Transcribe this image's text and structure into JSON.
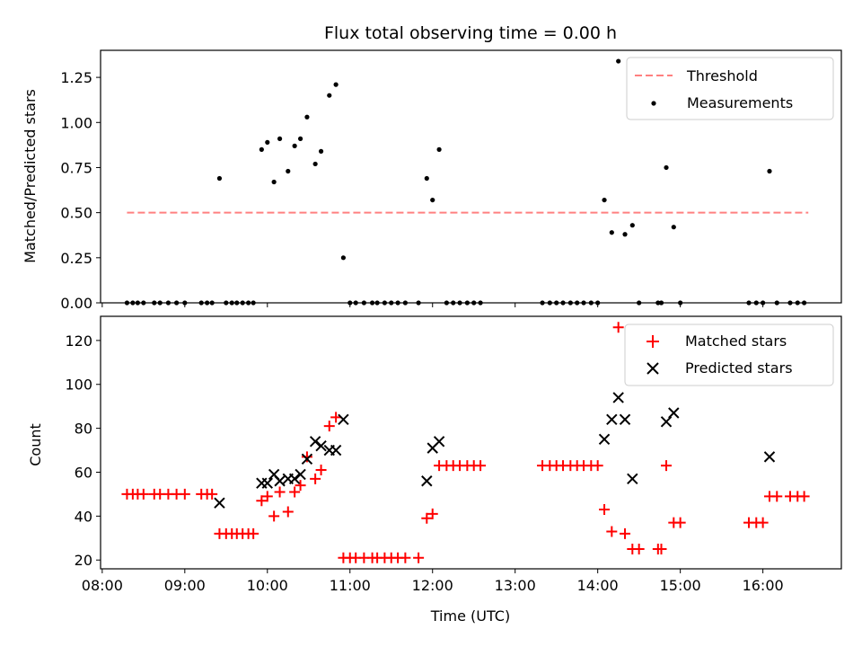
{
  "chart_data": {
    "type": "scatter",
    "title": "Flux total observing time = 0.00 h",
    "xlabel": "Time (UTC)",
    "x_unit": "hours since 00:00 UTC",
    "x_range": [
      7.98,
      16.95
    ],
    "x_ticks": [
      {
        "value": 8,
        "label": "08:00"
      },
      {
        "value": 9,
        "label": "09:00"
      },
      {
        "value": 10,
        "label": "10:00"
      },
      {
        "value": 11,
        "label": "11:00"
      },
      {
        "value": 12,
        "label": "12:00"
      },
      {
        "value": 13,
        "label": "13:00"
      },
      {
        "value": 14,
        "label": "14:00"
      },
      {
        "value": 15,
        "label": "15:00"
      },
      {
        "value": 16,
        "label": "16:00"
      }
    ],
    "panels": [
      {
        "id": "ratio",
        "ylabel": "Matched/Predicted stars",
        "ylim": [
          0,
          1.4
        ],
        "y_ticks": [
          "0.00",
          "0.25",
          "0.50",
          "0.75",
          "1.00",
          "1.25"
        ],
        "threshold": {
          "name": "Threshold",
          "value": 0.5,
          "x_start": 8.3,
          "x_end": 16.55,
          "color": "#ff8080"
        },
        "legend": [
          "Threshold",
          "Measurements"
        ],
        "series": [
          {
            "name": "Measurements",
            "marker": "dot",
            "color": "#000000",
            "points": [
              [
                8.3,
                0
              ],
              [
                8.37,
                0
              ],
              [
                8.43,
                0
              ],
              [
                8.5,
                0
              ],
              [
                8.63,
                0
              ],
              [
                8.7,
                0
              ],
              [
                8.8,
                0
              ],
              [
                8.9,
                0
              ],
              [
                9.0,
                0
              ],
              [
                9.2,
                0
              ],
              [
                9.27,
                0
              ],
              [
                9.33,
                0
              ],
              [
                9.42,
                0.69
              ],
              [
                9.5,
                0
              ],
              [
                9.57,
                0
              ],
              [
                9.63,
                0
              ],
              [
                9.7,
                0
              ],
              [
                9.77,
                0
              ],
              [
                9.83,
                0
              ],
              [
                9.93,
                0.85
              ],
              [
                10.0,
                0.89
              ],
              [
                10.08,
                0.67
              ],
              [
                10.15,
                0.91
              ],
              [
                10.25,
                0.73
              ],
              [
                10.33,
                0.87
              ],
              [
                10.4,
                0.91
              ],
              [
                10.48,
                1.03
              ],
              [
                10.58,
                0.77
              ],
              [
                10.65,
                0.84
              ],
              [
                10.75,
                1.15
              ],
              [
                10.83,
                1.21
              ],
              [
                10.92,
                0.25
              ],
              [
                11.0,
                0
              ],
              [
                11.07,
                0
              ],
              [
                11.17,
                0
              ],
              [
                11.27,
                0
              ],
              [
                11.33,
                0
              ],
              [
                11.42,
                0
              ],
              [
                11.5,
                0
              ],
              [
                11.58,
                0
              ],
              [
                11.67,
                0
              ],
              [
                11.83,
                0
              ],
              [
                11.93,
                0.69
              ],
              [
                12.0,
                0.57
              ],
              [
                12.08,
                0.85
              ],
              [
                12.17,
                0
              ],
              [
                12.25,
                0
              ],
              [
                12.33,
                0
              ],
              [
                12.42,
                0
              ],
              [
                12.5,
                0
              ],
              [
                12.58,
                0
              ],
              [
                13.33,
                0
              ],
              [
                13.42,
                0
              ],
              [
                13.5,
                0
              ],
              [
                13.58,
                0
              ],
              [
                13.67,
                0
              ],
              [
                13.75,
                0
              ],
              [
                13.83,
                0
              ],
              [
                13.92,
                0
              ],
              [
                14.0,
                0
              ],
              [
                14.08,
                0.57
              ],
              [
                14.17,
                0.39
              ],
              [
                14.25,
                1.34
              ],
              [
                14.33,
                0.38
              ],
              [
                14.42,
                0.43
              ],
              [
                14.5,
                0
              ],
              [
                14.73,
                0
              ],
              [
                14.77,
                0
              ],
              [
                14.83,
                0.75
              ],
              [
                14.92,
                0.42
              ],
              [
                15.0,
                0
              ],
              [
                15.83,
                0
              ],
              [
                15.92,
                0
              ],
              [
                16.0,
                0
              ],
              [
                16.08,
                0.73
              ],
              [
                16.17,
                0
              ],
              [
                16.33,
                0
              ],
              [
                16.42,
                0
              ],
              [
                16.5,
                0
              ]
            ]
          }
        ]
      },
      {
        "id": "counts",
        "ylabel": "Count",
        "ylim": [
          16,
          131
        ],
        "y_ticks": [
          "20",
          "40",
          "60",
          "80",
          "100",
          "120"
        ],
        "legend": [
          "Matched stars",
          "Predicted stars"
        ],
        "series": [
          {
            "name": "Matched stars",
            "marker": "plus",
            "color": "#ff0000",
            "points": [
              [
                8.3,
                50
              ],
              [
                8.37,
                50
              ],
              [
                8.43,
                50
              ],
              [
                8.5,
                50
              ],
              [
                8.63,
                50
              ],
              [
                8.7,
                50
              ],
              [
                8.8,
                50
              ],
              [
                8.9,
                50
              ],
              [
                9.0,
                50
              ],
              [
                9.2,
                50
              ],
              [
                9.27,
                50
              ],
              [
                9.33,
                50
              ],
              [
                9.42,
                32
              ],
              [
                9.5,
                32
              ],
              [
                9.57,
                32
              ],
              [
                9.63,
                32
              ],
              [
                9.7,
                32
              ],
              [
                9.77,
                32
              ],
              [
                9.83,
                32
              ],
              [
                9.93,
                47
              ],
              [
                10.0,
                49
              ],
              [
                10.08,
                40
              ],
              [
                10.15,
                51
              ],
              [
                10.25,
                42
              ],
              [
                10.33,
                51
              ],
              [
                10.4,
                54
              ],
              [
                10.48,
                67
              ],
              [
                10.58,
                57
              ],
              [
                10.65,
                61
              ],
              [
                10.75,
                81
              ],
              [
                10.83,
                85
              ],
              [
                10.92,
                21
              ],
              [
                11.0,
                21
              ],
              [
                11.07,
                21
              ],
              [
                11.17,
                21
              ],
              [
                11.27,
                21
              ],
              [
                11.33,
                21
              ],
              [
                11.42,
                21
              ],
              [
                11.5,
                21
              ],
              [
                11.58,
                21
              ],
              [
                11.67,
                21
              ],
              [
                11.83,
                21
              ],
              [
                11.93,
                39
              ],
              [
                12.0,
                41
              ],
              [
                12.08,
                63
              ],
              [
                12.17,
                63
              ],
              [
                12.25,
                63
              ],
              [
                12.33,
                63
              ],
              [
                12.42,
                63
              ],
              [
                12.5,
                63
              ],
              [
                12.58,
                63
              ],
              [
                13.33,
                63
              ],
              [
                13.42,
                63
              ],
              [
                13.5,
                63
              ],
              [
                13.58,
                63
              ],
              [
                13.67,
                63
              ],
              [
                13.75,
                63
              ],
              [
                13.83,
                63
              ],
              [
                13.92,
                63
              ],
              [
                14.0,
                63
              ],
              [
                14.08,
                43
              ],
              [
                14.17,
                33
              ],
              [
                14.25,
                126
              ],
              [
                14.33,
                32
              ],
              [
                14.42,
                25
              ],
              [
                14.5,
                25
              ],
              [
                14.73,
                25
              ],
              [
                14.77,
                25
              ],
              [
                14.83,
                63
              ],
              [
                14.92,
                37
              ],
              [
                15.0,
                37
              ],
              [
                15.83,
                37
              ],
              [
                15.92,
                37
              ],
              [
                16.0,
                37
              ],
              [
                16.08,
                49
              ],
              [
                16.17,
                49
              ],
              [
                16.33,
                49
              ],
              [
                16.42,
                49
              ],
              [
                16.5,
                49
              ]
            ]
          },
          {
            "name": "Predicted stars",
            "marker": "x",
            "color": "#000000",
            "points": [
              [
                9.42,
                46
              ],
              [
                9.93,
                55
              ],
              [
                10.0,
                55
              ],
              [
                10.08,
                59
              ],
              [
                10.15,
                56
              ],
              [
                10.25,
                57
              ],
              [
                10.33,
                57
              ],
              [
                10.4,
                59
              ],
              [
                10.48,
                66
              ],
              [
                10.58,
                74
              ],
              [
                10.65,
                72
              ],
              [
                10.75,
                70
              ],
              [
                10.83,
                70
              ],
              [
                10.92,
                84
              ],
              [
                11.93,
                56
              ],
              [
                12.0,
                71
              ],
              [
                12.08,
                74
              ],
              [
                14.08,
                75
              ],
              [
                14.17,
                84
              ],
              [
                14.25,
                94
              ],
              [
                14.33,
                84
              ],
              [
                14.42,
                57
              ],
              [
                14.83,
                83
              ],
              [
                14.92,
                87
              ],
              [
                16.08,
                67
              ]
            ]
          }
        ]
      }
    ]
  }
}
